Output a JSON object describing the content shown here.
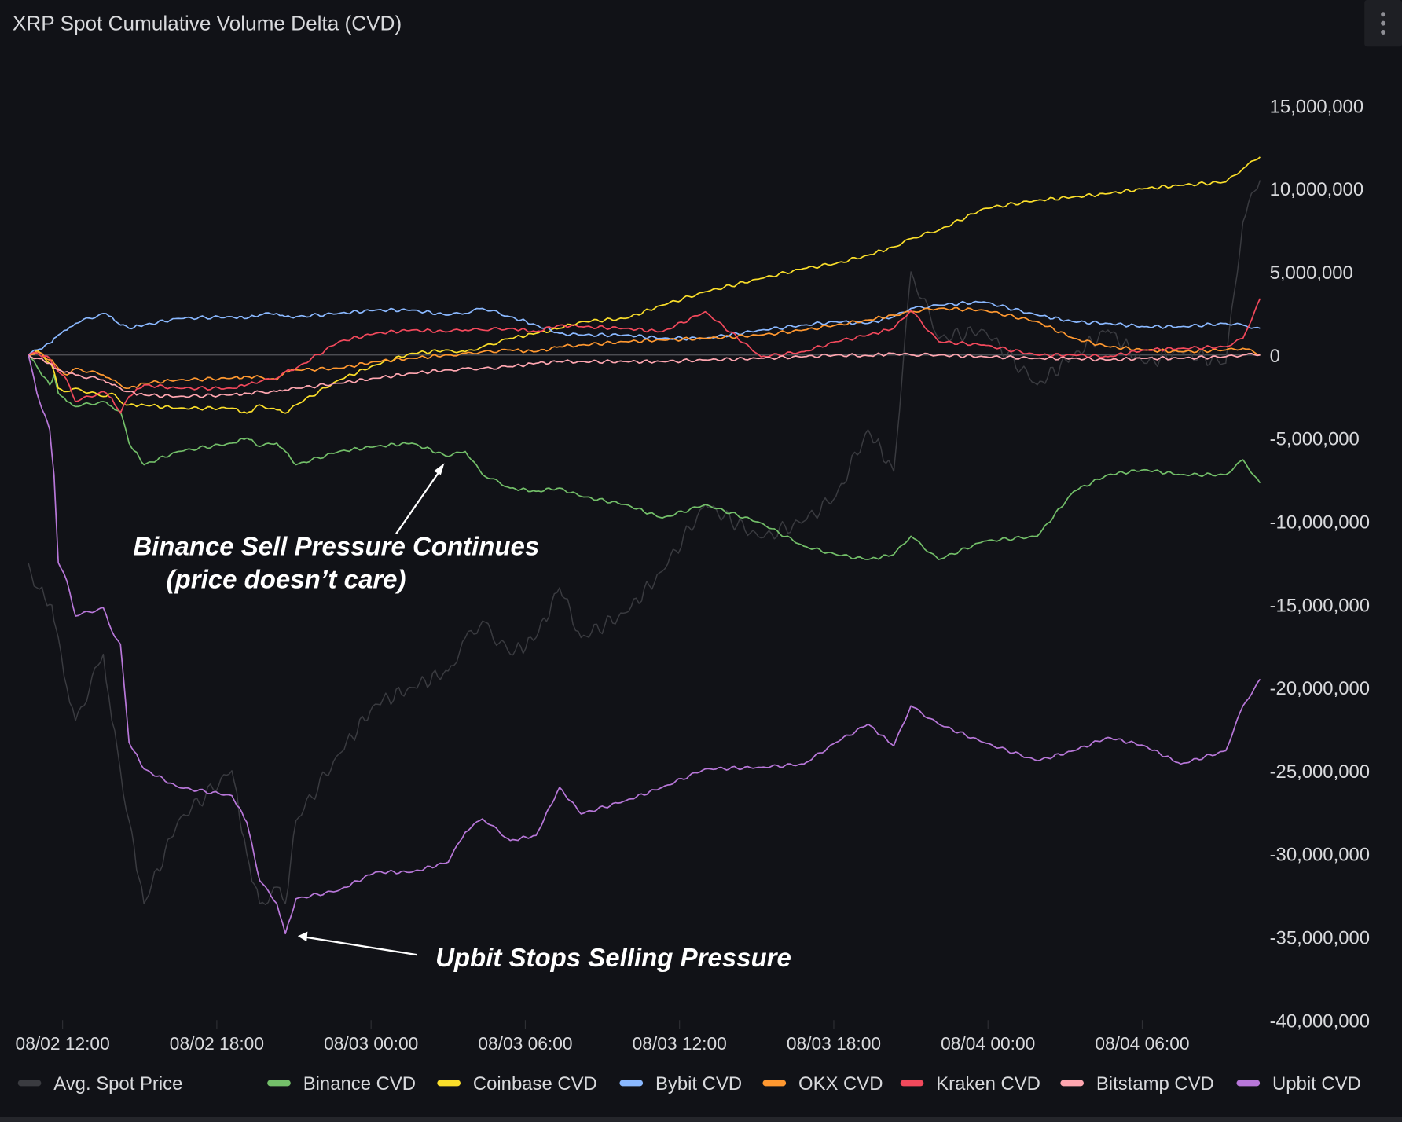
{
  "panel": {
    "title": "XRP Spot Cumulative Volume Delta (CVD)",
    "menu_icon": "vertical-ellipsis-icon"
  },
  "chart_data": {
    "type": "line",
    "title": "XRP Spot Cumulative Volume Delta (CVD)",
    "xlabel": "",
    "ylabel": "",
    "ylim": [
      -40000000,
      15000000
    ],
    "grid": false,
    "legend": "bottom",
    "y_ticks": [
      "15,000,000",
      "10,000,000",
      "5,000,000",
      "0",
      "-5,000,000",
      "-10,000,000",
      "-15,000,000",
      "-20,000,000",
      "-25,000,000",
      "-30,000,000",
      "-35,000,000",
      "-40,000,000"
    ],
    "y_tick_values": [
      15000000,
      10000000,
      5000000,
      0,
      -5000000,
      -10000000,
      -15000000,
      -20000000,
      -25000000,
      -30000000,
      -35000000,
      -40000000
    ],
    "x_ticks": [
      "08/02 12:00",
      "08/02 18:00",
      "08/03 00:00",
      "08/03 06:00",
      "08/03 12:00",
      "08/03 18:00",
      "08/04 00:00",
      "08/04 06:00"
    ],
    "x": [
      "08/02 10:40",
      "08/02 11:00",
      "08/02 11:30",
      "08/02 11:40",
      "08/02 11:50",
      "08/02 12:10",
      "08/02 12:30",
      "08/02 13:35",
      "08/02 13:55",
      "08/02 14:15",
      "08/02 14:35",
      "08/02 15:10",
      "08/02 16:30",
      "08/02 18:35",
      "08/02 19:10",
      "08/02 19:40",
      "08/02 20:20",
      "08/02 20:40",
      "08/02 21:05",
      "08/02 22:45",
      "08/03 00:10",
      "08/03 01:35",
      "08/03 03:00",
      "08/03 03:40",
      "08/03 04:20",
      "08/03 05:25",
      "08/03 06:25",
      "08/03 07:20",
      "08/03 08:10",
      "08/03 09:55",
      "08/03 11:20",
      "08/03 13:00",
      "08/03 15:10",
      "08/03 16:50",
      "08/03 18:05",
      "08/03 19:20",
      "08/03 20:20",
      "08/03 21:00",
      "08/03 22:05",
      "08/03 23:50",
      "08/04 01:55",
      "08/04 03:20",
      "08/04 04:40",
      "08/04 06:05",
      "08/04 07:30",
      "08/04 09:15",
      "08/04 09:55",
      "08/04 10:35"
    ],
    "series": [
      {
        "name": "Avg. Spot Price",
        "color": "#3a3b40",
        "values": [
          -12500000,
          -14000000,
          -15000000,
          -16000000,
          -17000000,
          -20000000,
          -22000000,
          -18000000,
          -22000000,
          -25000000,
          -28000000,
          -33000000,
          -28000000,
          -25000000,
          -30000000,
          -33000000,
          -32000000,
          -33000000,
          -28000000,
          -24000000,
          -21000000,
          -20000000,
          -19000000,
          -17000000,
          -16000000,
          -18000000,
          -17000000,
          -14000000,
          -17000000,
          -15500000,
          -13000000,
          -9000000,
          -11000000,
          -10000000,
          -8500000,
          -4500000,
          -7000000,
          5000000,
          1000000,
          1500000,
          -1800000,
          0,
          1500000,
          -500000,
          200000,
          -500000,
          8000000,
          10500000
        ]
      },
      {
        "name": "Binance CVD",
        "color": "#73bf69",
        "values": [
          0,
          -700000,
          -1800000,
          -1200000,
          -2300000,
          -2800000,
          -3100000,
          -2800000,
          -3100000,
          -3400000,
          -5300000,
          -6600000,
          -5800000,
          -5300000,
          -5000000,
          -5500000,
          -5300000,
          -5800000,
          -6600000,
          -5800000,
          -5500000,
          -5300000,
          -6100000,
          -5800000,
          -7200000,
          -8000000,
          -8200000,
          -8000000,
          -8500000,
          -9000000,
          -9800000,
          -9000000,
          -10100000,
          -11500000,
          -12000000,
          -12300000,
          -12000000,
          -10900000,
          -12300000,
          -11200000,
          -10900000,
          -8200000,
          -7200000,
          -6900000,
          -7200000,
          -7200000,
          -6300000,
          -7700000
        ]
      },
      {
        "name": "Coinbase CVD",
        "color": "#fade2a",
        "values": [
          0,
          300000,
          -500000,
          -1000000,
          -2000000,
          -2200000,
          -2000000,
          -2500000,
          -2300000,
          -2800000,
          -3000000,
          -3000000,
          -3200000,
          -3200000,
          -3500000,
          -3000000,
          -3300000,
          -3500000,
          -3000000,
          -1500000,
          -600000,
          100000,
          300000,
          200000,
          500000,
          1000000,
          1300000,
          1600000,
          2000000,
          2200000,
          3000000,
          3800000,
          4600000,
          5200000,
          5500000,
          6000000,
          6500000,
          7000000,
          7500000,
          8800000,
          9300000,
          9500000,
          9700000,
          10000000,
          10200000,
          10400000,
          11200000,
          11900000
        ]
      },
      {
        "name": "Bybit CVD",
        "color": "#8ab8ff",
        "values": [
          0,
          300000,
          700000,
          1000000,
          1200000,
          1500000,
          1900000,
          2500000,
          2300000,
          1800000,
          1600000,
          1800000,
          2200000,
          2300000,
          2200000,
          2400000,
          2500000,
          2300000,
          2300000,
          2500000,
          2700000,
          2700000,
          2400000,
          2500000,
          2800000,
          2300000,
          1800000,
          1300000,
          1200000,
          1200000,
          1000000,
          1000000,
          1500000,
          1800000,
          2000000,
          1900000,
          2300000,
          2800000,
          3000000,
          3200000,
          2400000,
          2000000,
          1900000,
          1700000,
          1700000,
          1900000,
          1800000,
          1600000
        ]
      },
      {
        "name": "OKX CVD",
        "color": "#ff9830",
        "values": [
          0,
          200000,
          -300000,
          -500000,
          -800000,
          -1200000,
          -800000,
          -1200000,
          -1500000,
          -1800000,
          -2000000,
          -1700000,
          -1500000,
          -1400000,
          -1300000,
          -1300000,
          -1500000,
          -1000000,
          -900000,
          -800000,
          -400000,
          -200000,
          0,
          100000,
          200000,
          300000,
          200000,
          500000,
          600000,
          800000,
          900000,
          1000000,
          1200000,
          1500000,
          1800000,
          2100000,
          2400000,
          2600000,
          2800000,
          2700000,
          2000000,
          1000000,
          500000,
          300000,
          200000,
          300000,
          400000,
          0
        ]
      },
      {
        "name": "Kraken CVD",
        "color": "#f2495c",
        "values": [
          0,
          100000,
          -200000,
          -600000,
          -1000000,
          -1500000,
          -2800000,
          -2200000,
          -2600000,
          -3500000,
          -2500000,
          -1800000,
          -2000000,
          -2000000,
          -1800000,
          -1600000,
          -1400000,
          -1000000,
          -800000,
          800000,
          1300000,
          1500000,
          1400000,
          1500000,
          1500000,
          1600000,
          1400000,
          1800000,
          1700000,
          1600000,
          1400000,
          2600000,
          -100000,
          200000,
          800000,
          1200000,
          1600000,
          2700000,
          800000,
          600000,
          0,
          0,
          -100000,
          300000,
          400000,
          500000,
          1000000,
          3400000
        ]
      },
      {
        "name": "Bitstamp CVD",
        "color": "#ffa6b0",
        "values": [
          0,
          -200000,
          -500000,
          -800000,
          -900000,
          -1000000,
          -1200000,
          -1500000,
          -1800000,
          -2000000,
          -2200000,
          -2400000,
          -2500000,
          -2400000,
          -2300000,
          -2200000,
          -2200000,
          -2100000,
          -2000000,
          -1700000,
          -1400000,
          -1100000,
          -900000,
          -800000,
          -800000,
          -700000,
          -500000,
          -400000,
          -400000,
          -400000,
          -400000,
          -300000,
          -200000,
          -100000,
          0,
          -50000,
          100000,
          0,
          0,
          -100000,
          -200000,
          -200000,
          -300000,
          -200000,
          -200000,
          -100000,
          0,
          0
        ]
      },
      {
        "name": "Upbit CVD",
        "color": "#b877d9",
        "values": [
          0,
          -2300000,
          -4500000,
          -7200000,
          -12500000,
          -13600000,
          -15700000,
          -15200000,
          -16600000,
          -17400000,
          -23300000,
          -24900000,
          -26000000,
          -26500000,
          -28100000,
          -31600000,
          -33000000,
          -34800000,
          -32700000,
          -32200000,
          -31100000,
          -31100000,
          -30500000,
          -28700000,
          -27900000,
          -29200000,
          -28900000,
          -26000000,
          -27600000,
          -26800000,
          -26000000,
          -24900000,
          -24800000,
          -24600000,
          -23300000,
          -22200000,
          -23500000,
          -21100000,
          -22200000,
          -23300000,
          -24400000,
          -23800000,
          -23000000,
          -23500000,
          -24600000,
          -23800000,
          -21100000,
          -19500000
        ]
      }
    ],
    "annotations": [
      {
        "text": "Binance Sell Pressure Continues",
        "subtext": "(price doesn’t care)"
      },
      {
        "text": "Upbit Stops Selling Pressure"
      }
    ]
  }
}
